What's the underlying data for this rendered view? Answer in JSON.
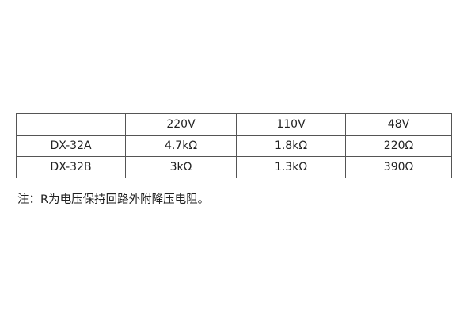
{
  "table": {
    "headers": [
      "",
      "220V",
      "110V",
      "48V"
    ],
    "rows": [
      [
        "DX-32A",
        "4.7kΩ",
        "1.8kΩ",
        "220Ω"
      ],
      [
        "DX-32B",
        "3kΩ",
        "1.3kΩ",
        "390Ω"
      ]
    ]
  },
  "note": "注：R为电压保持回路外附降压电阻。"
}
